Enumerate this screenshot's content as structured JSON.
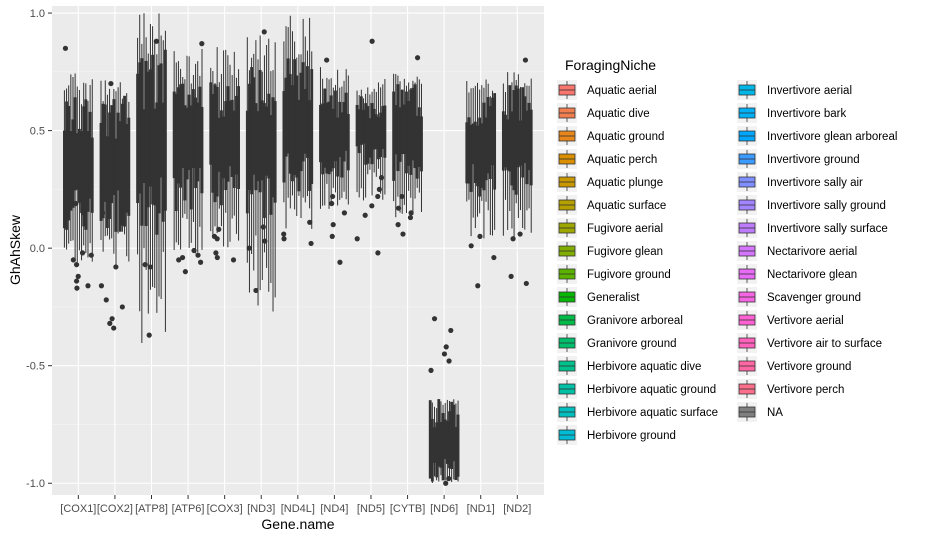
{
  "chart_data": {
    "type": "boxplot",
    "xlabel": "Gene.name",
    "ylabel": "GhAhSkew",
    "ylim": [
      -1.05,
      1.03
    ],
    "yticks": [
      -1.0,
      -0.5,
      0.0,
      0.5,
      1.0
    ],
    "ytick_labels": [
      "-1.0",
      "-0.5",
      "0.0",
      "0.5",
      "1.0"
    ],
    "categories": [
      "[COX1]",
      "[COX2]",
      "[ATP8]",
      "[ATP6]",
      "[COX3]",
      "[ND3]",
      "[ND4L]",
      "[ND4]",
      "[ND5]",
      "[CYTB]",
      "[ND6]",
      "[ND1]",
      "[ND2]"
    ],
    "grid": true,
    "legend_position": "right",
    "legend_title": "ForagingNiche",
    "legend": [
      {
        "label": "Aquatic aerial",
        "color": "#F8766D"
      },
      {
        "label": "Aquatic dive",
        "color": "#F17E4F"
      },
      {
        "label": "Aquatic ground",
        "color": "#E6861B"
      },
      {
        "label": "Aquatic perch",
        "color": "#D98F00"
      },
      {
        "label": "Aquatic plunge",
        "color": "#C99800"
      },
      {
        "label": "Aquatic surface",
        "color": "#B5A000"
      },
      {
        "label": "Fugivore aerial",
        "color": "#9DA700"
      },
      {
        "label": "Fugivore glean",
        "color": "#80AD00"
      },
      {
        "label": "Fugivore ground",
        "color": "#5BB300"
      },
      {
        "label": "Generalist",
        "color": "#07B705"
      },
      {
        "label": "Granivore arboreal",
        "color": "#00BB48"
      },
      {
        "label": "Granivore ground",
        "color": "#00BE6C"
      },
      {
        "label": "Herbivore aquatic dive",
        "color": "#00C08B"
      },
      {
        "label": "Herbivore aquatic ground",
        "color": "#00C0A6"
      },
      {
        "label": "Herbivore aquatic surface",
        "color": "#00BFBE"
      },
      {
        "label": "Herbivore ground",
        "color": "#00BCD4"
      },
      {
        "label": "Invertivore aerial",
        "color": "#00B7E7"
      },
      {
        "label": "Invertivore bark",
        "color": "#00B0F6"
      },
      {
        "label": "Invertivore glean arboreal",
        "color": "#00A6FF"
      },
      {
        "label": "Invertivore ground",
        "color": "#3B9BFF"
      },
      {
        "label": "Invertivore sally air",
        "color": "#7F8FFF"
      },
      {
        "label": "Invertivore sally ground",
        "color": "#A285FF"
      },
      {
        "label": "Invertivore sally surface",
        "color": "#BD7CFB"
      },
      {
        "label": "Nectarivore aerial",
        "color": "#D575FE"
      },
      {
        "label": "Nectarivore glean",
        "color": "#E86BF6"
      },
      {
        "label": "Scavenger ground",
        "color": "#F564E3"
      },
      {
        "label": "Vertivore aerial",
        "color": "#FD61D1"
      },
      {
        "label": "Vertivore air to surface",
        "color": "#FF62BC"
      },
      {
        "label": "Vertivore ground",
        "color": "#FF67A4"
      },
      {
        "label": "Vertivore perch",
        "color": "#FB6F8B"
      },
      {
        "label": "NA",
        "color": "#7F7F7F"
      }
    ],
    "groups": [
      {
        "gene": "[COX1]",
        "lo": -0.08,
        "hi": 0.75,
        "q1": 0.16,
        "q3": 0.55,
        "outliers": [
          0.85,
          0.19,
          0.15,
          -0.02,
          -0.03,
          -0.05,
          -0.07,
          -0.12,
          -0.14,
          -0.16,
          -0.17
        ]
      },
      {
        "gene": "[COX2]",
        "lo": -0.08,
        "hi": 0.72,
        "q1": 0.15,
        "q3": 0.55,
        "outliers": [
          0.7,
          0.17,
          0.15,
          -0.08,
          -0.16,
          -0.22,
          -0.25,
          -0.3,
          -0.32,
          -0.34
        ]
      },
      {
        "gene": "[ATP8]",
        "lo": -0.42,
        "hi": 1.01,
        "q1": 0.18,
        "q3": 0.72,
        "outliers": [
          0.88,
          -0.07,
          -0.08,
          -0.37
        ]
      },
      {
        "gene": "[ATP6]",
        "lo": -0.04,
        "hi": 0.85,
        "q1": 0.25,
        "q3": 0.62,
        "outliers": [
          0.87,
          -0.01,
          -0.03,
          -0.04,
          -0.05,
          -0.06,
          -0.1
        ]
      },
      {
        "gene": "[COX3]",
        "lo": 0.0,
        "hi": 0.86,
        "q1": 0.27,
        "q3": 0.63,
        "outliers": [
          0.08,
          0.05,
          0.04,
          -0.02,
          -0.04,
          -0.05
        ]
      },
      {
        "gene": "[ND3]",
        "lo": -0.27,
        "hi": 0.91,
        "q1": 0.22,
        "q3": 0.68,
        "outliers": [
          0.92,
          0.09,
          0.03,
          0.0,
          -0.18
        ]
      },
      {
        "gene": "[ND4L]",
        "lo": 0.05,
        "hi": 0.99,
        "q1": 0.3,
        "q3": 0.72,
        "outliers": [
          0.11,
          0.06,
          0.04,
          0.02
        ]
      },
      {
        "gene": "[ND4]",
        "lo": 0.16,
        "hi": 0.78,
        "q1": 0.35,
        "q3": 0.62,
        "outliers": [
          0.8,
          0.22,
          0.19,
          0.15,
          0.1,
          0.05,
          -0.06
        ]
      },
      {
        "gene": "[ND5]",
        "lo": 0.2,
        "hi": 0.72,
        "q1": 0.4,
        "q3": 0.6,
        "outliers": [
          0.88,
          0.3,
          0.25,
          0.22,
          0.18,
          0.14,
          0.04,
          -0.02
        ]
      },
      {
        "gene": "[CYTB]",
        "lo": 0.12,
        "hi": 0.75,
        "q1": 0.35,
        "q3": 0.63,
        "outliers": [
          0.81,
          0.22,
          0.17,
          0.15,
          0.13,
          0.1,
          0.06
        ]
      },
      {
        "gene": "[ND6]",
        "lo": -1.0,
        "hi": -0.64,
        "q1": -0.95,
        "q3": -0.7,
        "outliers": [
          -0.3,
          -0.35,
          -0.42,
          -0.45,
          -0.48,
          -0.52,
          -0.98,
          -1.0
        ]
      },
      {
        "gene": "[ND1]",
        "lo": 0.04,
        "hi": 0.72,
        "q1": 0.28,
        "q3": 0.6,
        "outliers": [
          0.05,
          0.01,
          -0.04,
          -0.16
        ]
      },
      {
        "gene": "[ND2]",
        "lo": 0.02,
        "hi": 0.76,
        "q1": 0.3,
        "q3": 0.62,
        "outliers": [
          0.8,
          0.06,
          0.04,
          -0.12,
          -0.15
        ]
      }
    ]
  }
}
